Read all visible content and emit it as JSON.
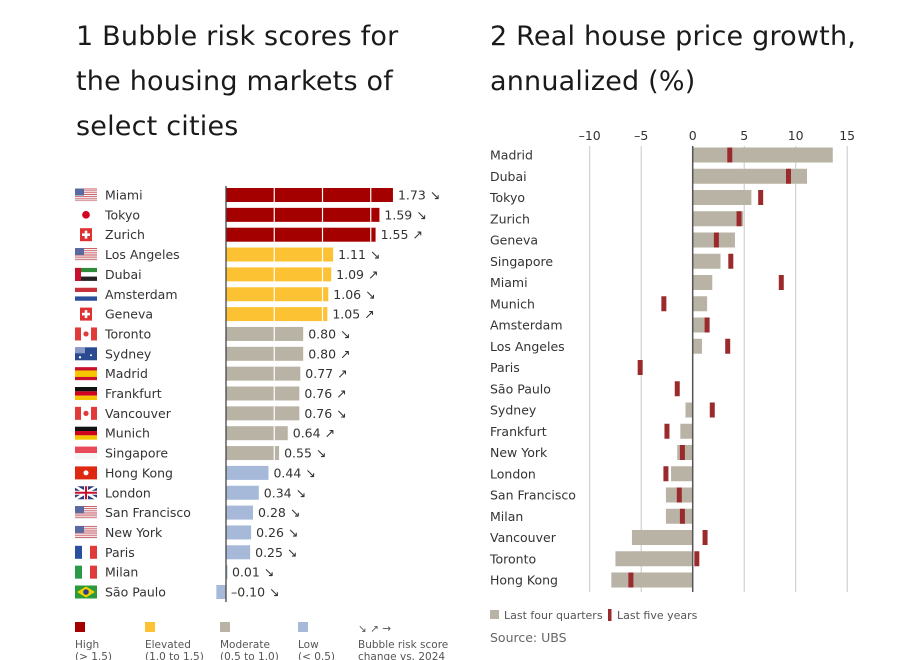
{
  "chart_data": [
    {
      "type": "bar",
      "title": "1 Bubble risk scores for the housing markets of select cities",
      "orientation": "horizontal",
      "xlim": [
        -0.1,
        1.8
      ],
      "colors": {
        "high": "#a50000",
        "elevated": "#fcc234",
        "moderate": "#b8b3a5",
        "low": "#a6b9d8"
      },
      "categories": [
        "Miami",
        "Tokyo",
        "Zurich",
        "Los Angeles",
        "Dubai",
        "Amsterdam",
        "Geneva",
        "Toronto",
        "Sydney",
        "Madrid",
        "Frankfurt",
        "Vancouver",
        "Munich",
        "Singapore",
        "Hong Kong",
        "London",
        "San Francisco",
        "New York",
        "Paris",
        "Milan",
        "São Paulo"
      ],
      "flags": [
        "us-flag-icon",
        "japan-flag-icon",
        "switzerland-flag-icon",
        "us-flag-icon",
        "uae-flag-icon",
        "netherlands-flag-icon",
        "switzerland-flag-icon",
        "canada-flag-icon",
        "australia-flag-icon",
        "spain-flag-icon",
        "germany-flag-icon",
        "canada-flag-icon",
        "germany-flag-icon",
        "singapore-flag-icon",
        "hongkong-flag-icon",
        "uk-flag-icon",
        "us-flag-icon",
        "us-flag-icon",
        "france-flag-icon",
        "italy-flag-icon",
        "brazil-flag-icon"
      ],
      "values": [
        1.73,
        1.59,
        1.55,
        1.11,
        1.09,
        1.06,
        1.05,
        0.8,
        0.8,
        0.77,
        0.76,
        0.76,
        0.64,
        0.55,
        0.44,
        0.34,
        0.28,
        0.26,
        0.25,
        0.01,
        -0.1
      ],
      "value_labels": [
        "1.73",
        "1.59",
        "1.55",
        "1.11",
        "1.09",
        "1.06",
        "1.05",
        "0.80",
        "0.80",
        "0.77",
        "0.76",
        "0.76",
        "0.64",
        "0.55",
        "0.44",
        "0.34",
        "0.28",
        "0.26",
        "0.25",
        "0.01",
        "–0.10"
      ],
      "change": [
        "down",
        "down",
        "up",
        "down",
        "up",
        "down",
        "up",
        "down",
        "up",
        "up",
        "up",
        "down",
        "up",
        "down",
        "down",
        "down",
        "down",
        "down",
        "down",
        "down",
        "down"
      ],
      "arrow_glyphs": {
        "down": "↘",
        "up": "↗",
        "flat": "→"
      },
      "legend": [
        {
          "key": "high",
          "label": "High",
          "range": "(> 1.5)"
        },
        {
          "key": "elevated",
          "label": "Elevated",
          "range": "(1.0 to 1.5)"
        },
        {
          "key": "moderate",
          "label": "Moderate",
          "range": "(0.5 to 1.0)"
        },
        {
          "key": "low",
          "label": "Low",
          "range": "(< 0.5)"
        }
      ],
      "legend_arrows": "↘ ↗ →",
      "legend_arrows_label1": "Bubble risk score",
      "legend_arrows_label2": "change vs. 2024"
    },
    {
      "type": "bar",
      "title": "2 Real house price growth, annualized (%)",
      "orientation": "horizontal",
      "xlim": [
        -10,
        15
      ],
      "xticks": [
        -10,
        -5,
        0,
        5,
        10,
        15
      ],
      "xtick_labels": [
        "–10",
        "–5",
        "0",
        "5",
        "10",
        "15"
      ],
      "grid": true,
      "categories": [
        "Madrid",
        "Dubai",
        "Tokyo",
        "Zurich",
        "Geneva",
        "Singapore",
        "Miami",
        "Munich",
        "Amsterdam",
        "Los Angeles",
        "Paris",
        "São Paulo",
        "Sydney",
        "Frankfurt",
        "New York",
        "London",
        "San Francisco",
        "Milan",
        "Vancouver",
        "Toronto",
        "Hong Kong"
      ],
      "series": [
        {
          "name": "Last four quarters",
          "color": "#b8b3a5",
          "marker": "bar",
          "values": [
            13.6,
            11.1,
            5.7,
            4.9,
            4.1,
            2.7,
            1.9,
            1.4,
            1.2,
            0.9,
            0.0,
            0.0,
            -0.7,
            -1.2,
            -1.5,
            -2.1,
            -2.6,
            -2.6,
            -5.9,
            -7.5,
            -7.9
          ]
        },
        {
          "name": "Last five years",
          "color": "#9b2a2c",
          "marker": "tick",
          "values": [
            3.6,
            9.3,
            6.6,
            4.5,
            2.3,
            3.7,
            8.6,
            -2.8,
            1.4,
            3.4,
            -5.1,
            -1.5,
            1.9,
            -2.5,
            -1.0,
            -2.6,
            -1.3,
            -1.0,
            1.2,
            0.4,
            -6.0
          ]
        }
      ],
      "legend_placement": "bottom-left",
      "source": "Source: UBS"
    }
  ]
}
